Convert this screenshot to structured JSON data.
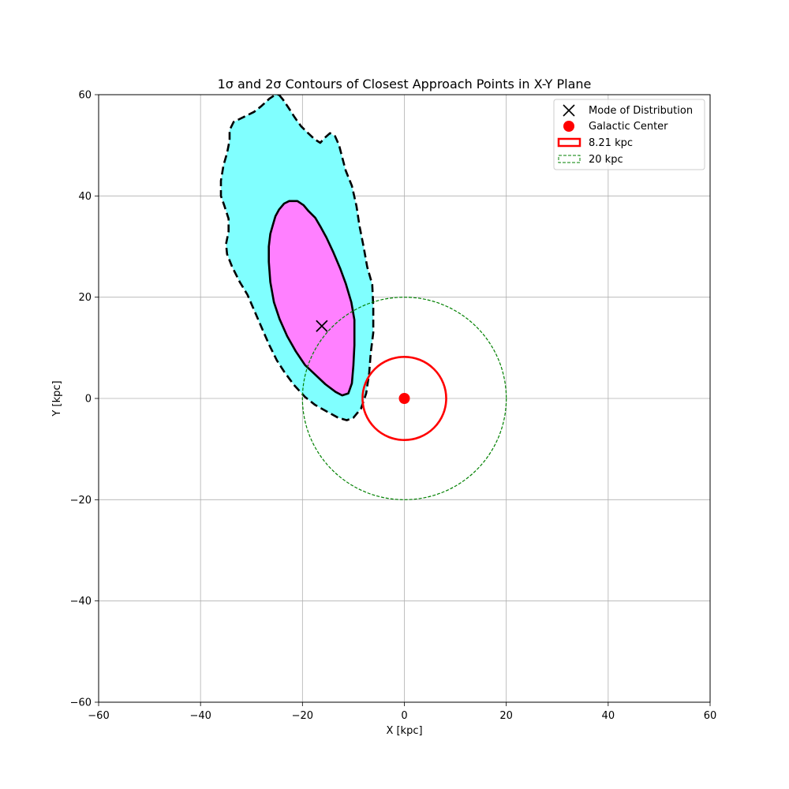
{
  "chart_data": {
    "type": "contour",
    "title": "1σ and 2σ Contours of Closest Approach Points in X-Y Plane",
    "xlabel": "X [kpc]",
    "ylabel": "Y [kpc]",
    "xlim": [
      -60,
      60
    ],
    "ylim": [
      -60,
      60
    ],
    "xticks": [
      -60,
      -40,
      -20,
      0,
      20,
      40,
      60
    ],
    "yticks": [
      -60,
      -40,
      -20,
      0,
      20,
      40,
      60
    ],
    "xtick_labels": [
      "−60",
      "−40",
      "−20",
      "0",
      "20",
      "40",
      "60"
    ],
    "ytick_labels": [
      "−60",
      "−40",
      "−20",
      "0",
      "20",
      "40",
      "60"
    ],
    "grid": true,
    "legend_position": "upper right",
    "contours": [
      {
        "level": "2σ",
        "fill": "#80ffff",
        "line_style": "dashed",
        "points": [
          [
            -24.6,
            60
          ],
          [
            -23.8,
            59
          ],
          [
            -22.8,
            57.5
          ],
          [
            -21.5,
            55.5
          ],
          [
            -20.3,
            53.8
          ],
          [
            -19,
            52.5
          ],
          [
            -17.6,
            51.2
          ],
          [
            -16.5,
            50.5
          ],
          [
            -15.6,
            51.5
          ],
          [
            -14.6,
            52.4
          ],
          [
            -13.6,
            51.8
          ],
          [
            -12.8,
            50
          ],
          [
            -12.3,
            48
          ],
          [
            -11.5,
            45
          ],
          [
            -10.3,
            42
          ],
          [
            -9.4,
            38
          ],
          [
            -8.8,
            34
          ],
          [
            -8,
            30
          ],
          [
            -7.3,
            26
          ],
          [
            -6.3,
            22.5
          ],
          [
            -6.1,
            18
          ],
          [
            -6.1,
            13
          ],
          [
            -6.6,
            9
          ],
          [
            -6.9,
            5
          ],
          [
            -7.5,
            1
          ],
          [
            -8.5,
            -2
          ],
          [
            -10,
            -3.8
          ],
          [
            -11.3,
            -4.3
          ],
          [
            -13,
            -3.8
          ],
          [
            -15,
            -2.7
          ],
          [
            -17.5,
            -1.3
          ],
          [
            -19.5,
            0.3
          ],
          [
            -21.7,
            2.7
          ],
          [
            -23.6,
            5.3
          ],
          [
            -25,
            7.5
          ],
          [
            -26.5,
            10.5
          ],
          [
            -27.8,
            13.5
          ],
          [
            -29.3,
            17
          ],
          [
            -30.8,
            20.5
          ],
          [
            -32.3,
            23
          ],
          [
            -33.8,
            26
          ],
          [
            -34.8,
            28.5
          ],
          [
            -35,
            30.5
          ],
          [
            -34.5,
            33
          ],
          [
            -34.5,
            35.5
          ],
          [
            -35.3,
            38
          ],
          [
            -36,
            40
          ],
          [
            -36,
            43
          ],
          [
            -35.5,
            46
          ],
          [
            -34.8,
            48.5
          ],
          [
            -34.3,
            51
          ],
          [
            -34.3,
            53
          ],
          [
            -33.5,
            54.6
          ],
          [
            -31.5,
            55.6
          ],
          [
            -29.5,
            56.6
          ],
          [
            -28,
            57.8
          ],
          [
            -26.5,
            59.2
          ],
          [
            -25.3,
            60
          ]
        ]
      },
      {
        "level": "1σ",
        "fill": "#ff80ff",
        "line_style": "solid",
        "points": [
          [
            -22.6,
            39
          ],
          [
            -21,
            39
          ],
          [
            -19.8,
            38.2
          ],
          [
            -18.8,
            37
          ],
          [
            -17.5,
            35.7
          ],
          [
            -16.5,
            34
          ],
          [
            -15.3,
            31.8
          ],
          [
            -14,
            29
          ],
          [
            -12.6,
            25.7
          ],
          [
            -11.5,
            22.7
          ],
          [
            -10.4,
            19
          ],
          [
            -9.8,
            15.5
          ],
          [
            -9.8,
            10.5
          ],
          [
            -10,
            6.5
          ],
          [
            -10.3,
            3
          ],
          [
            -11,
            1
          ],
          [
            -12.2,
            0.6
          ],
          [
            -13.5,
            1.3
          ],
          [
            -15.5,
            2.8
          ],
          [
            -17.5,
            4.7
          ],
          [
            -19.5,
            6.6
          ],
          [
            -21.3,
            9.3
          ],
          [
            -23,
            12.3
          ],
          [
            -24.5,
            15.7
          ],
          [
            -25.6,
            19
          ],
          [
            -26.3,
            23
          ],
          [
            -26.6,
            27
          ],
          [
            -26.6,
            30
          ],
          [
            -26.3,
            32.5
          ],
          [
            -25.8,
            34.3
          ],
          [
            -25.3,
            36
          ],
          [
            -24.6,
            37.3
          ],
          [
            -23.6,
            38.5
          ],
          [
            -22.6,
            39
          ]
        ]
      }
    ],
    "markers": [
      {
        "name": "Mode of Distribution",
        "x": -16.2,
        "y": 14.3,
        "marker": "x",
        "color": "#000000"
      },
      {
        "name": "Galactic Center",
        "x": 0,
        "y": 0,
        "marker": "o",
        "color": "#ff0000"
      }
    ],
    "circles": [
      {
        "name": "8.21 kpc",
        "radius": 8.21,
        "color": "#ff0000",
        "line_style": "solid"
      },
      {
        "name": "20 kpc",
        "radius": 20,
        "color": "#008000",
        "line_style": "dashed"
      }
    ],
    "legend": [
      {
        "label": "Mode of Distribution",
        "symbol": "x"
      },
      {
        "label": "Galactic Center",
        "symbol": "dot"
      },
      {
        "label": "8.21 kpc",
        "symbol": "red-rect"
      },
      {
        "label": "20 kpc",
        "symbol": "green-dashed-rect"
      }
    ]
  }
}
